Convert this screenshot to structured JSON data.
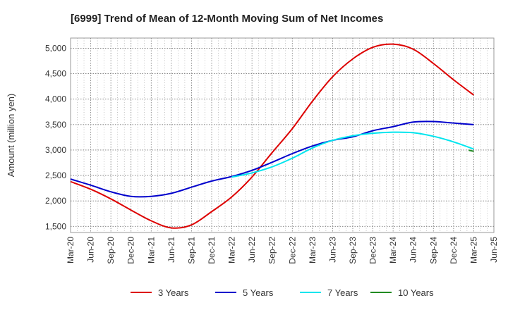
{
  "chart_data": {
    "type": "line",
    "title": "[6999]  Trend of Mean of 12-Month Moving Sum of Net Incomes",
    "xlabel": "",
    "ylabel": "Amount (million yen)",
    "x": [
      "Mar-20",
      "Jun-20",
      "Sep-20",
      "Dec-20",
      "Mar-21",
      "Jun-21",
      "Sep-21",
      "Dec-21",
      "Mar-22",
      "Jun-22",
      "Sep-22",
      "Dec-22",
      "Mar-23",
      "Jun-23",
      "Sep-23",
      "Dec-23",
      "Mar-24",
      "Jun-24",
      "Sep-24",
      "Dec-24",
      "Mar-25",
      "Jun-25"
    ],
    "yticks": [
      1500,
      2000,
      2500,
      3000,
      3500,
      4000,
      4500,
      5000
    ],
    "ytick_labels": [
      "1,500",
      "2,000",
      "2,500",
      "3,000",
      "3,500",
      "4,000",
      "4,500",
      "5,000"
    ],
    "ylim": [
      1380,
      5200
    ],
    "grid": true,
    "legend_position": "bottom",
    "series": [
      {
        "name": "3 Years",
        "color": "#dd0000",
        "values": [
          2380,
          2230,
          2040,
          1820,
          1610,
          1470,
          1530,
          1790,
          2080,
          2470,
          2950,
          3420,
          3960,
          4440,
          4790,
          5020,
          5080,
          4980,
          4700,
          4380,
          4080,
          null
        ]
      },
      {
        "name": "5 Years",
        "color": "#0000cc",
        "values": [
          2430,
          2310,
          2180,
          2090,
          2090,
          2150,
          2270,
          2390,
          2480,
          2600,
          2760,
          2930,
          3080,
          3190,
          3260,
          3380,
          3460,
          3550,
          3560,
          3530,
          3500,
          null
        ]
      },
      {
        "name": "7 Years",
        "color": "#00e5ee",
        "values": [
          null,
          null,
          null,
          null,
          null,
          null,
          null,
          null,
          2470,
          2550,
          2670,
          2840,
          3040,
          3190,
          3280,
          3330,
          3350,
          3340,
          3270,
          3160,
          3020,
          null
        ]
      },
      {
        "name": "10 Years",
        "color": "#228b22",
        "values": [
          null,
          null,
          null,
          null,
          null,
          null,
          null,
          null,
          null,
          null,
          null,
          null,
          null,
          null,
          null,
          null,
          null,
          null,
          null,
          null,
          2975,
          null
        ]
      }
    ]
  }
}
